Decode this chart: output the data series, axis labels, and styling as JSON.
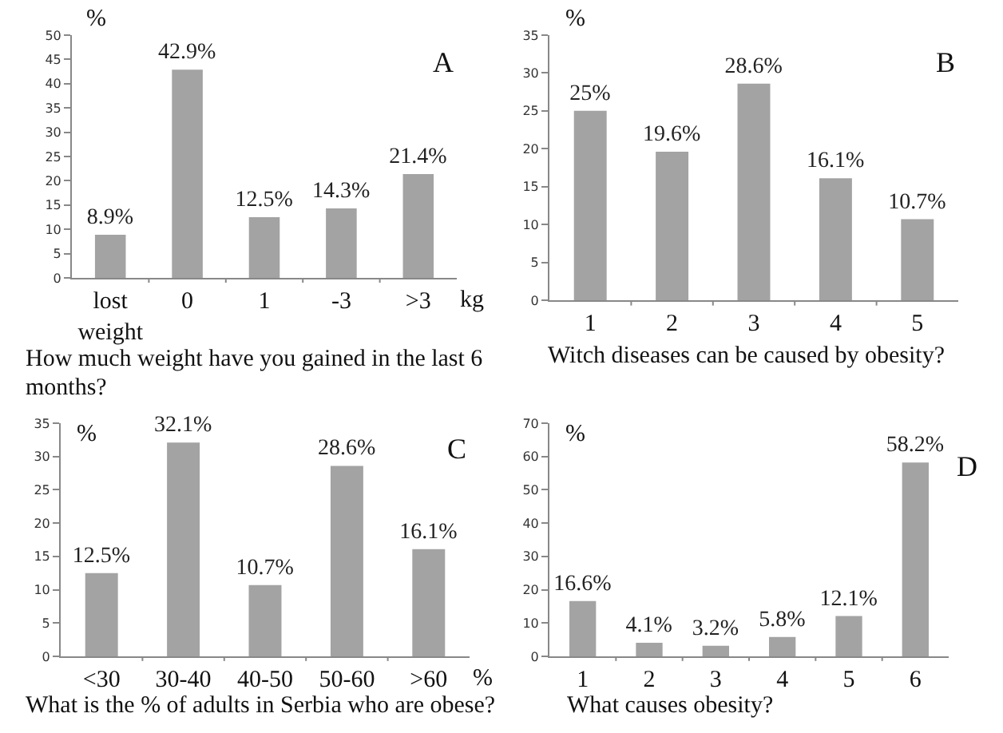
{
  "chart_data": [
    {
      "type": "bar",
      "title": "How much weight have you gained in the last 6 months?",
      "ylabel": "%",
      "xlabel": "kg",
      "annotations": [
        "A"
      ],
      "categories": [
        "lost weight",
        "0",
        "1",
        "-3",
        ">3"
      ],
      "values": [
        8.9,
        42.9,
        12.5,
        14.3,
        21.4
      ],
      "value_labels": [
        "8.9%",
        "42.9%",
        "12.5%",
        "14.3%",
        "21.4%"
      ],
      "color": "#a3a3a3",
      "ylim": [
        0,
        50
      ],
      "yticks": [
        0,
        5,
        10,
        15,
        20,
        25,
        30,
        35,
        40,
        45,
        50
      ],
      "grid": false
    },
    {
      "type": "bar",
      "title": "Witch diseases can be caused by obesity?",
      "ylabel": "%",
      "annotations": [
        "B"
      ],
      "categories": [
        "1",
        "2",
        "3",
        "4",
        "5"
      ],
      "values": [
        25,
        19.6,
        28.6,
        16.1,
        10.7
      ],
      "value_labels": [
        "25%",
        "19.6%",
        "28.6%",
        "16.1%",
        "10.7%"
      ],
      "color": "#a3a3a3",
      "ylim": [
        0,
        35
      ],
      "yticks": [
        0,
        5,
        10,
        15,
        20,
        25,
        30,
        35
      ],
      "grid": false
    },
    {
      "type": "bar",
      "title": "What is the % of adults in Serbia who are obese?",
      "ylabel": "%",
      "xlabel": "%",
      "annotations": [
        "C"
      ],
      "categories": [
        "<30",
        "30-40",
        "40-50",
        "50-60",
        ">60"
      ],
      "values": [
        12.5,
        32.1,
        10.7,
        28.6,
        16.1
      ],
      "value_labels": [
        "12.5%",
        "32.1%",
        "10.7%",
        "28.6%",
        "16.1%"
      ],
      "color": "#a3a3a3",
      "ylim": [
        0,
        35
      ],
      "yticks": [
        0,
        5,
        10,
        15,
        20,
        25,
        30,
        35
      ],
      "grid": false
    },
    {
      "type": "bar",
      "title": "What causes obesity?",
      "ylabel": "%",
      "annotations": [
        "D"
      ],
      "categories": [
        "1",
        "2",
        "3",
        "4",
        "5",
        "6"
      ],
      "values": [
        16.6,
        4.1,
        3.2,
        5.8,
        12.1,
        58.2
      ],
      "value_labels": [
        "16.6%",
        "4.1%",
        "3.2%",
        "5.8%",
        "12.1%",
        "58.2%"
      ],
      "color": "#a3a3a3",
      "ylim": [
        0,
        70
      ],
      "yticks": [
        0,
        10,
        20,
        30,
        40,
        50,
        60,
        70
      ],
      "grid": false
    }
  ]
}
